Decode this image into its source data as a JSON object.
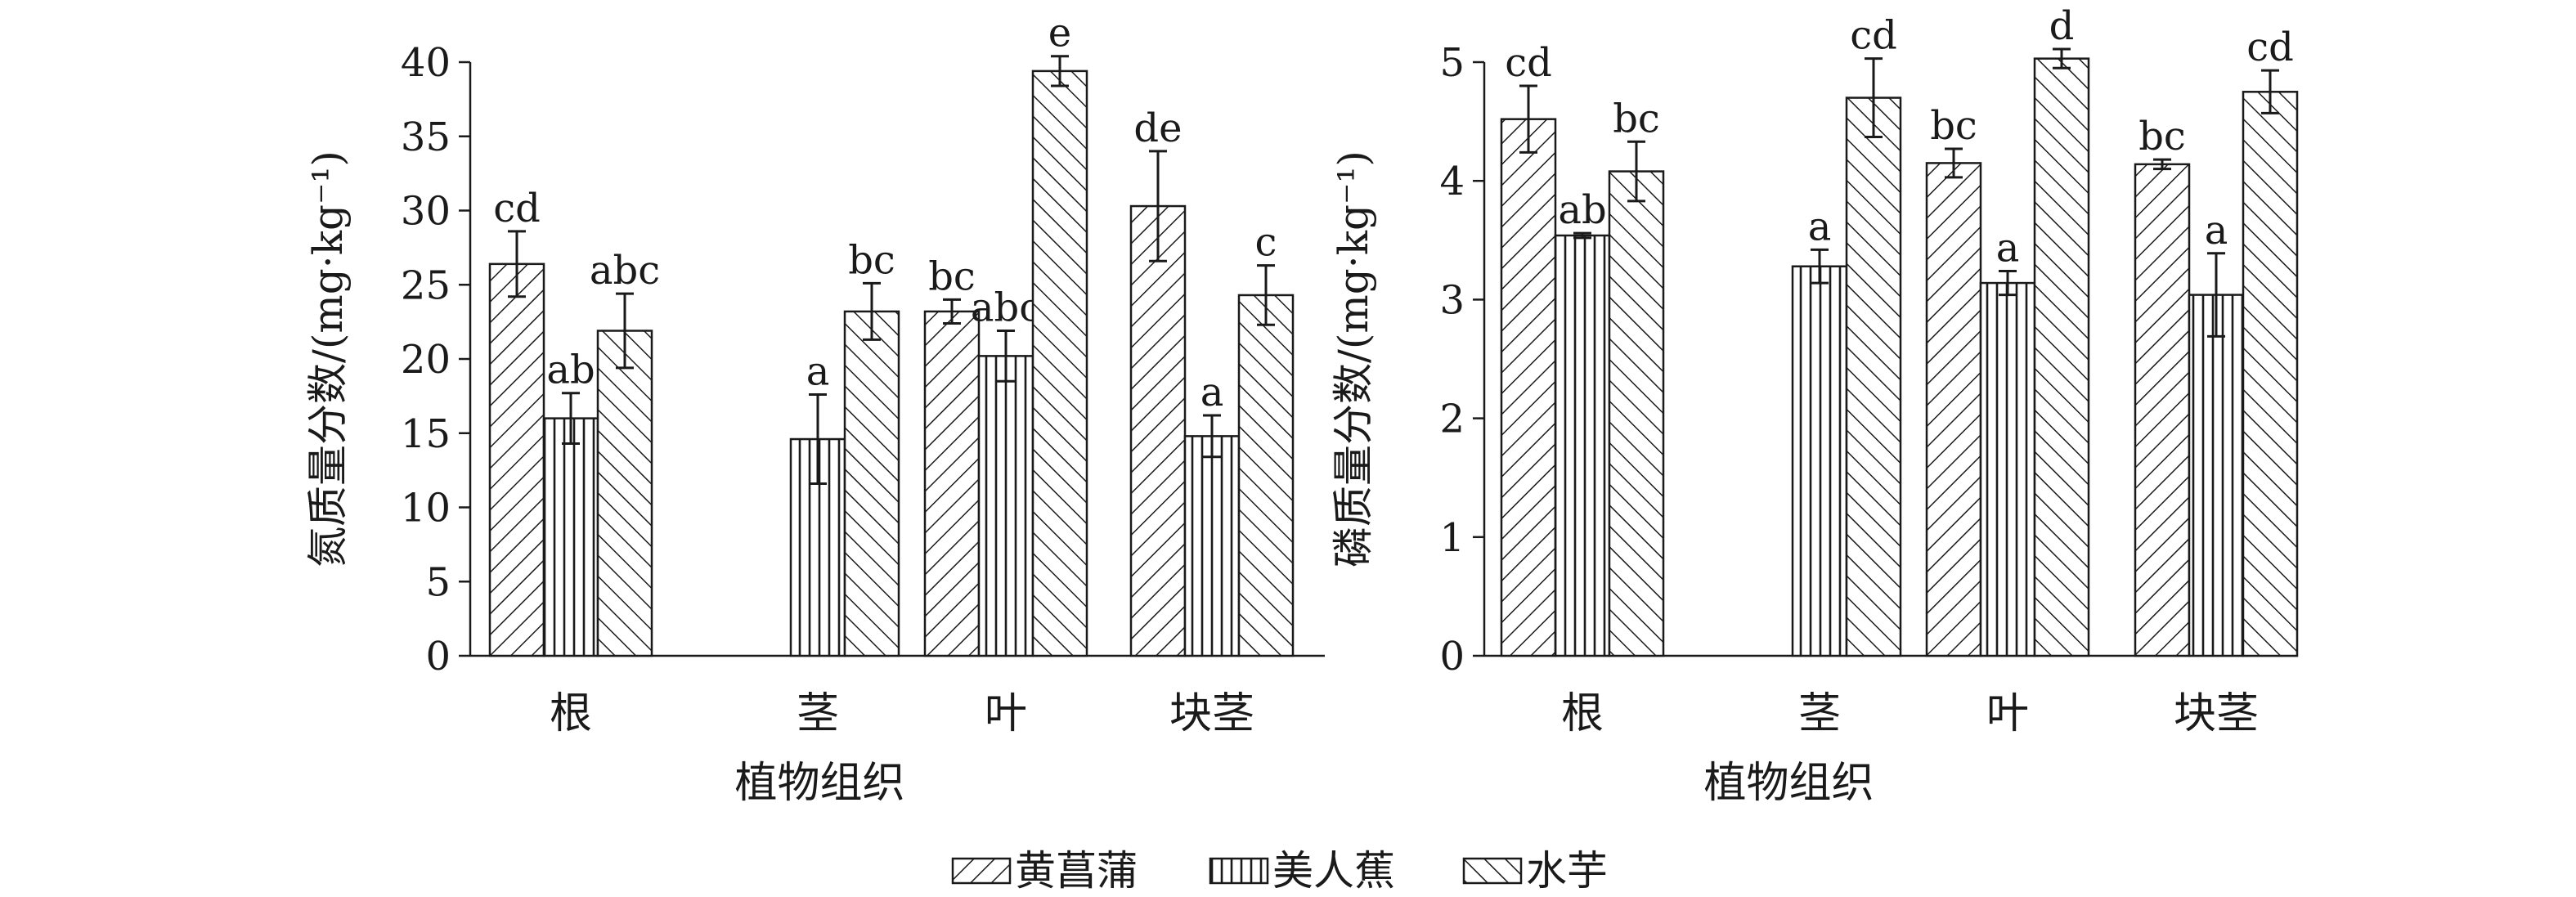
{
  "legend": {
    "placement": "bottom-center",
    "items": [
      {
        "label": "黄菖蒲",
        "pattern": "diag-right"
      },
      {
        "label": "美人蕉",
        "pattern": "vertical"
      },
      {
        "label": "水芋",
        "pattern": "diag-left"
      }
    ]
  },
  "colors": {
    "ink": "#1a1a1a",
    "background": "#ffffff"
  },
  "chart_data": [
    {
      "type": "bar",
      "title": "",
      "xlabel": "植物组织",
      "ylabel": "氮质量分数/(mg·kg⁻¹)",
      "ylim": [
        0,
        40
      ],
      "yticks": [
        "0",
        "5",
        "10",
        "15",
        "20",
        "25",
        "30",
        "35",
        "40"
      ],
      "grid": false,
      "categories": [
        "根",
        "茎",
        "叶",
        "块茎"
      ],
      "series": [
        {
          "name": "黄菖蒲",
          "values": [
            26.4,
            null,
            23.2,
            30.3
          ],
          "errors": [
            2.2,
            null,
            0.8,
            3.7
          ],
          "letters": [
            "cd",
            "",
            "bc",
            "de"
          ]
        },
        {
          "name": "美人蕉",
          "values": [
            16.0,
            14.6,
            20.2,
            14.8
          ],
          "errors": [
            1.7,
            3.0,
            1.7,
            1.4
          ],
          "letters": [
            "ab",
            "a",
            "abc",
            "a"
          ]
        },
        {
          "name": "水芋",
          "values": [
            21.9,
            23.2,
            39.4,
            24.3
          ],
          "errors": [
            2.5,
            1.9,
            1.0,
            2.0
          ],
          "letters": [
            "abc",
            "bc",
            "e",
            "c"
          ]
        }
      ]
    },
    {
      "type": "bar",
      "title": "",
      "xlabel": "植物组织",
      "ylabel": "磷质量分数/(mg·kg⁻¹)",
      "ylim": [
        0,
        5
      ],
      "yticks": [
        "0",
        "1",
        "2",
        "3",
        "4",
        "5"
      ],
      "grid": false,
      "categories": [
        "根",
        "茎",
        "叶",
        "块茎"
      ],
      "series": [
        {
          "name": "黄菖蒲",
          "values": [
            4.52,
            null,
            4.15,
            4.14
          ],
          "errors": [
            0.28,
            null,
            0.12,
            0.04
          ],
          "letters": [
            "cd",
            "",
            "bc",
            "bc"
          ]
        },
        {
          "name": "美人蕉",
          "values": [
            3.54,
            3.28,
            3.14,
            3.04
          ],
          "errors": [
            0.02,
            0.14,
            0.1,
            0.35
          ],
          "letters": [
            "ab",
            "a",
            "a",
            "a"
          ]
        },
        {
          "name": "水芋",
          "values": [
            4.08,
            4.7,
            5.03,
            4.75
          ],
          "errors": [
            0.25,
            0.33,
            0.08,
            0.18
          ],
          "letters": [
            "bc",
            "cd",
            "d",
            "cd"
          ]
        }
      ]
    }
  ]
}
